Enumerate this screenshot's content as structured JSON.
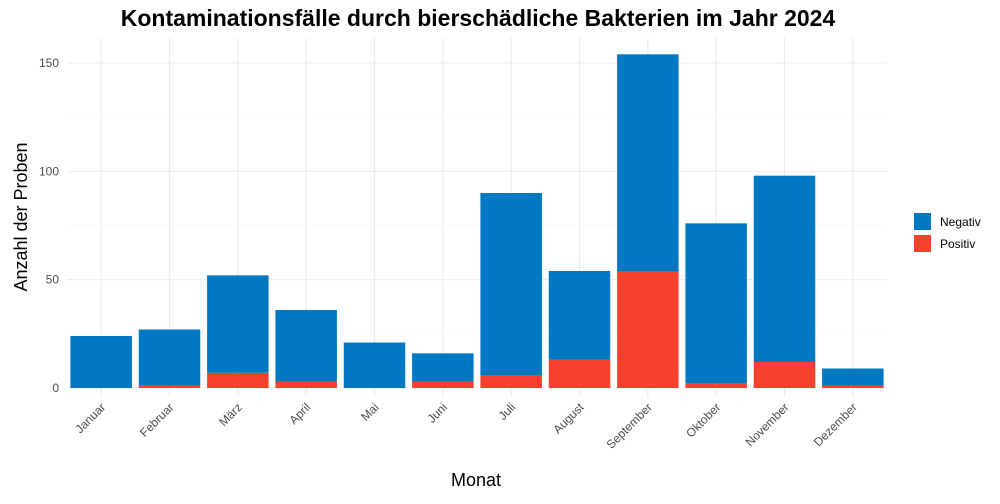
{
  "chart_data": {
    "type": "bar",
    "stacked": true,
    "title": "Kontaminationsfälle durch bierschädliche Bakterien im Jahr 2024",
    "xlabel": "Monat",
    "ylabel": "Anzahl der Proben",
    "ylim": [
      0,
      160
    ],
    "yticks": [
      0,
      50,
      100,
      150
    ],
    "grid": true,
    "legend_position": "right",
    "categories": [
      "Januar",
      "Februar",
      "März",
      "April",
      "Mai",
      "Juni",
      "Juli",
      "August",
      "September",
      "Oktober",
      "November",
      "Dezember"
    ],
    "series": [
      {
        "name": "Positiv",
        "color": "#f8402f",
        "values": [
          0,
          1,
          7,
          3,
          0,
          3,
          6,
          13,
          54,
          2,
          12,
          1
        ]
      },
      {
        "name": "Negativ",
        "color": "#0079c2",
        "values": [
          24,
          26,
          45,
          33,
          21,
          13,
          84,
          41,
          100,
          74,
          86,
          8
        ]
      }
    ],
    "legend_order": [
      "Negativ",
      "Positiv"
    ]
  }
}
